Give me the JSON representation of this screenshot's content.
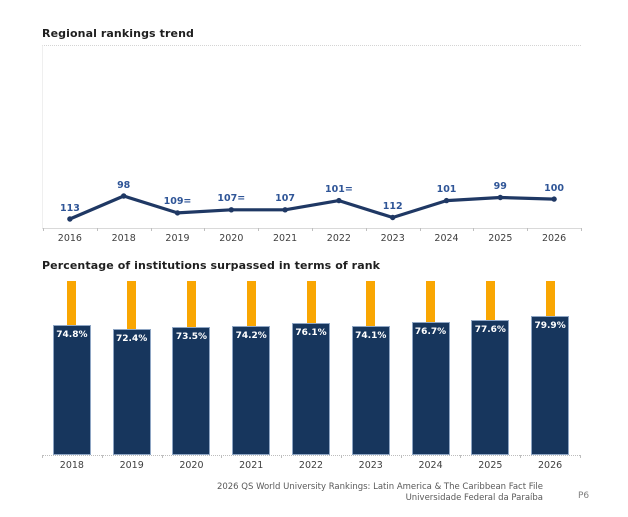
{
  "chart_data": [
    {
      "type": "line",
      "title": "Regional rankings trend",
      "categories": [
        "2016",
        "2018",
        "2019",
        "2020",
        "2021",
        "2022",
        "2023",
        "2024",
        "2025",
        "2026"
      ],
      "values": [
        113,
        98,
        109,
        107,
        107,
        101,
        112,
        101,
        99,
        100
      ],
      "point_labels": [
        "113",
        "98",
        "109=",
        "107=",
        "107",
        "101=",
        "112",
        "101",
        "99",
        "100"
      ],
      "ylim": [
        98,
        113
      ],
      "y_axis_inverted": true,
      "grid": false,
      "legend": "none",
      "line_color": "#1F3864",
      "marker_color": "#1F3864",
      "point_label_color": "#2F5597",
      "axis_label_color": "#404040"
    },
    {
      "type": "bar",
      "title": "Percentage of institutions surpassed in terms of rank",
      "categories": [
        "2018",
        "2019",
        "2020",
        "2021",
        "2022",
        "2023",
        "2024",
        "2025",
        "2026"
      ],
      "values": [
        74.8,
        72.4,
        73.5,
        74.2,
        76.1,
        74.1,
        76.7,
        77.6,
        79.9
      ],
      "value_labels": [
        "74.8%",
        "72.4%",
        "73.5%",
        "74.2%",
        "76.1%",
        "74.1%",
        "76.7%",
        "77.6%",
        "79.9%"
      ],
      "ylim": [
        0,
        100
      ],
      "reference_value": 100,
      "grid": false,
      "legend": "none",
      "bar_color": "#17365D",
      "reference_bar_color": "#F9A602",
      "value_label_color": "#FFFFFF",
      "axis_label_color": "#404040"
    }
  ],
  "footer": {
    "line1": "2026 QS World University Rankings: Latin America & The Caribbean Fact File",
    "line2": "Universidade Federal da Paraíba",
    "page_number": "P6"
  }
}
